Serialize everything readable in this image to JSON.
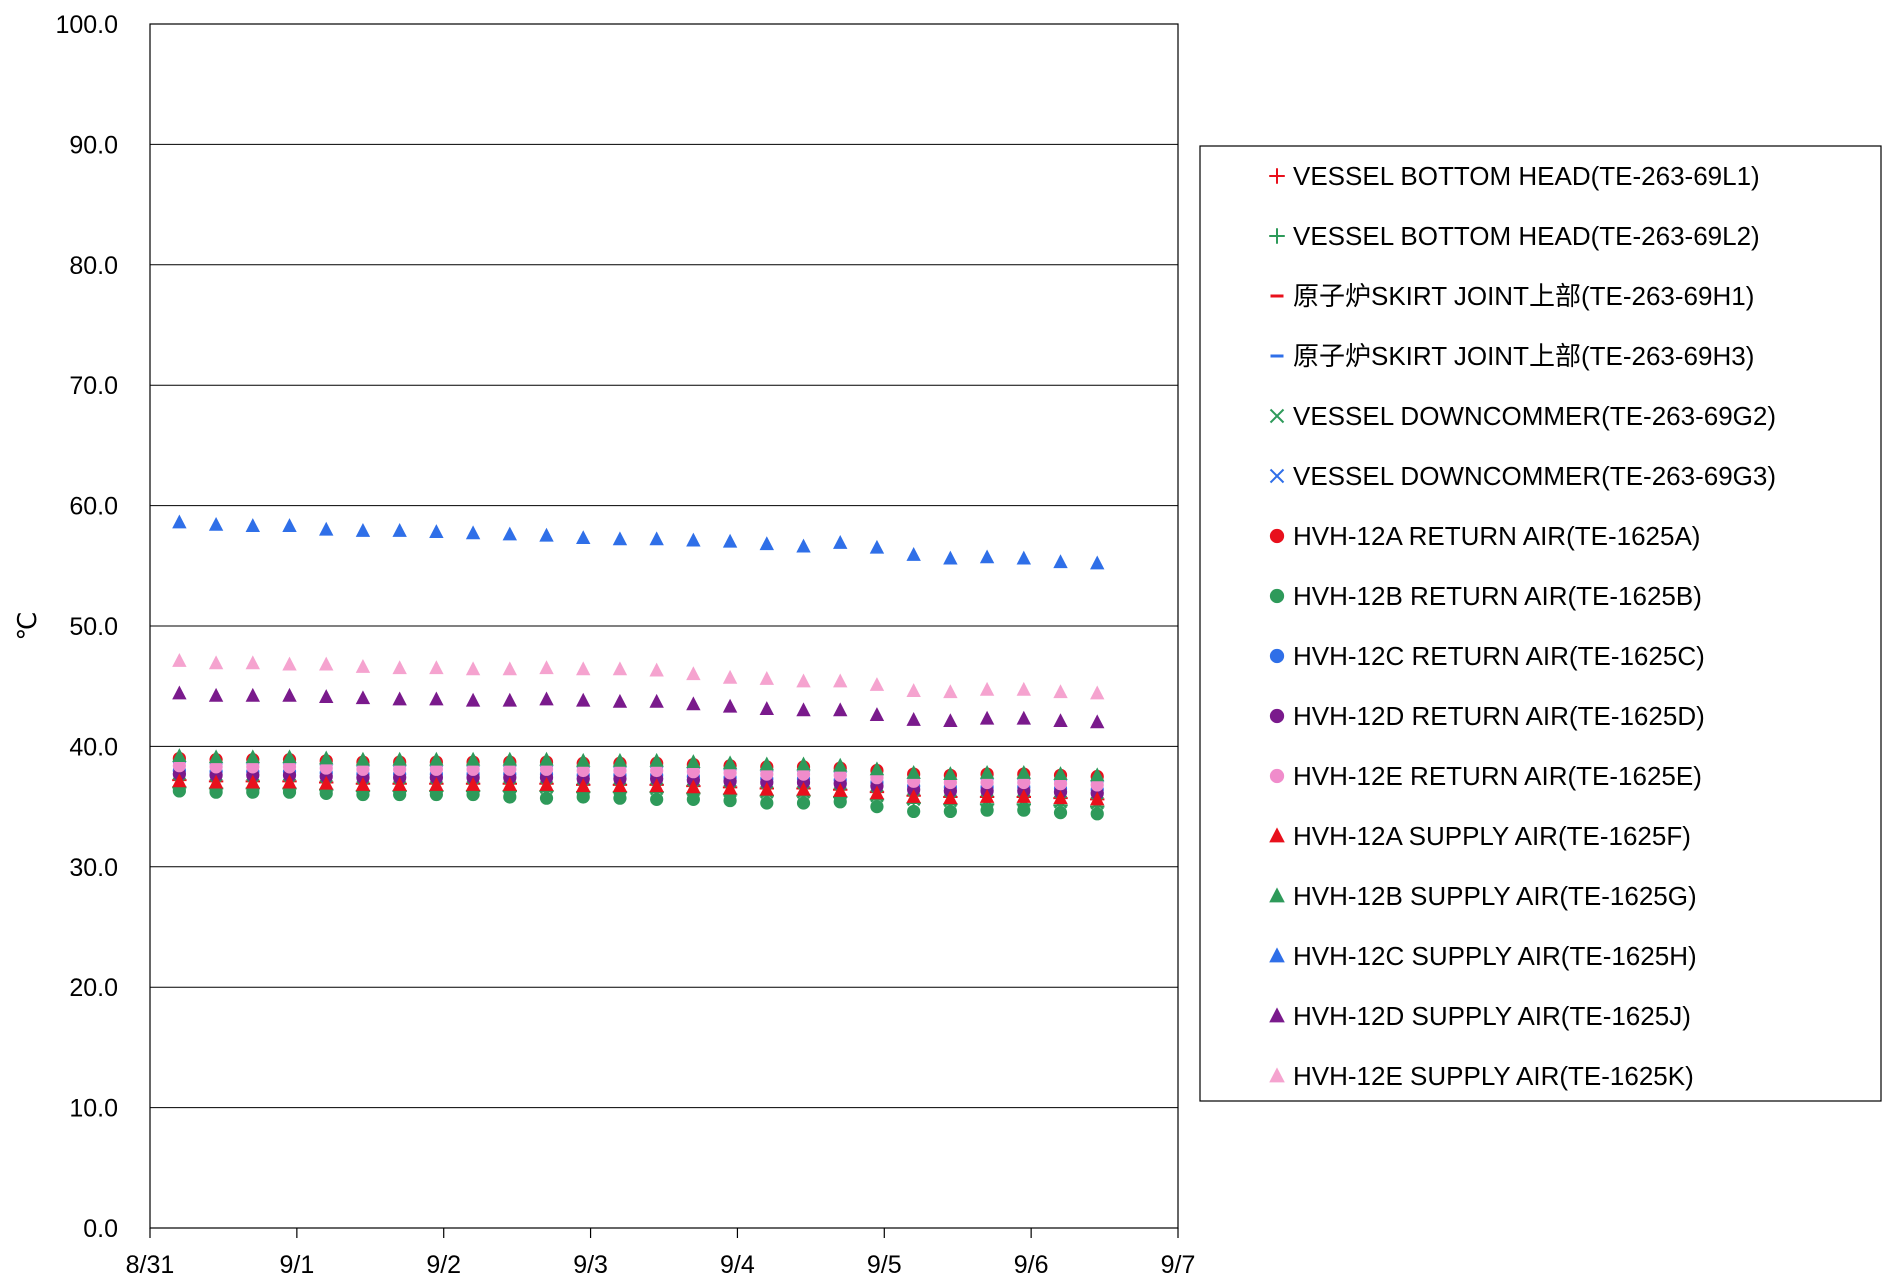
{
  "chart_data": {
    "type": "scatter",
    "title": "",
    "xlabel": "",
    "ylabel": "℃",
    "ylim": [
      0,
      100
    ],
    "y_ticks": [
      "0.0",
      "10.0",
      "20.0",
      "30.0",
      "40.0",
      "50.0",
      "60.0",
      "70.0",
      "80.0",
      "90.0",
      "100.0"
    ],
    "x_ticks": [
      "8/31",
      "9/1",
      "9/2",
      "9/3",
      "9/4",
      "9/5",
      "9/6",
      "9/7"
    ],
    "x_range_days": [
      0,
      7
    ],
    "grid": "horizontal",
    "legend_position": "right",
    "x": [
      0.2,
      0.45,
      0.7,
      0.95,
      1.2,
      1.45,
      1.7,
      1.95,
      2.2,
      2.45,
      2.7,
      2.95,
      3.2,
      3.45,
      3.7,
      3.95,
      4.2,
      4.45,
      4.7,
      4.95,
      5.2,
      5.45,
      5.7,
      5.95,
      6.2,
      6.45
    ],
    "series": [
      {
        "name": "VESSEL BOTTOM HEAD(TE-263-69L1)",
        "marker": "plus",
        "color": "#e8101c",
        "values": [
          37.2,
          37.1,
          37.1,
          37.1,
          37.0,
          36.9,
          36.9,
          36.9,
          36.9,
          36.9,
          36.9,
          36.8,
          36.8,
          36.8,
          36.7,
          36.6,
          36.5,
          36.5,
          36.4,
          36.2,
          35.9,
          35.8,
          35.8,
          35.8,
          35.7,
          35.6
        ]
      },
      {
        "name": "VESSEL BOTTOM HEAD(TE-263-69L2)",
        "marker": "plus",
        "color": "#2e9a5a",
        "values": [
          36.6,
          36.5,
          36.5,
          36.5,
          36.4,
          36.3,
          36.3,
          36.3,
          36.3,
          36.3,
          36.3,
          36.2,
          36.2,
          36.2,
          36.1,
          36.0,
          35.9,
          35.9,
          35.8,
          35.6,
          35.3,
          35.2,
          35.2,
          35.2,
          35.1,
          35.0
        ]
      },
      {
        "name": "原子炉SKIRT JOINT上部(TE-263-69H1)",
        "marker": "dash",
        "color": "#e8101c",
        "values": [
          37.6,
          37.5,
          37.5,
          37.5,
          37.4,
          37.3,
          37.3,
          37.3,
          37.3,
          37.3,
          37.3,
          37.2,
          37.2,
          37.2,
          37.1,
          37.0,
          36.9,
          36.9,
          36.8,
          36.6,
          36.3,
          36.2,
          36.2,
          36.2,
          36.1,
          36.0
        ]
      },
      {
        "name": "原子炉SKIRT JOINT上部(TE-263-69H3)",
        "marker": "dash",
        "color": "#2f6fe8",
        "values": [
          38.6,
          38.5,
          38.5,
          38.5,
          38.4,
          38.3,
          38.3,
          38.3,
          38.3,
          38.3,
          38.3,
          38.2,
          38.2,
          38.2,
          38.1,
          38.0,
          37.9,
          37.9,
          37.8,
          37.6,
          37.3,
          37.2,
          37.2,
          37.2,
          37.1,
          37.0
        ]
      },
      {
        "name": "VESSEL DOWNCOMMER(TE-263-69G2)",
        "marker": "x",
        "color": "#2e9a5a",
        "values": [
          36.9,
          36.8,
          36.8,
          36.8,
          36.7,
          36.6,
          36.6,
          36.6,
          36.6,
          36.6,
          36.6,
          36.5,
          36.5,
          36.5,
          36.4,
          36.3,
          36.2,
          36.2,
          36.1,
          35.9,
          35.6,
          35.5,
          35.5,
          35.5,
          35.4,
          35.3
        ]
      },
      {
        "name": "VESSEL DOWNCOMMER(TE-263-69G3)",
        "marker": "x",
        "color": "#2f6fe8",
        "values": [
          38.2,
          38.1,
          38.1,
          38.1,
          38.0,
          37.9,
          37.9,
          37.9,
          37.9,
          37.9,
          37.9,
          37.8,
          37.8,
          37.8,
          37.7,
          37.6,
          37.5,
          37.5,
          37.4,
          37.2,
          36.9,
          36.8,
          36.8,
          36.8,
          36.7,
          36.6
        ]
      },
      {
        "name": "HVH-12A RETURN AIR(TE-1625A)",
        "marker": "circle",
        "color": "#e8101c",
        "values": [
          39.0,
          38.9,
          38.9,
          38.9,
          38.8,
          38.7,
          38.7,
          38.7,
          38.7,
          38.7,
          38.7,
          38.6,
          38.6,
          38.6,
          38.5,
          38.4,
          38.3,
          38.3,
          38.2,
          38.0,
          37.7,
          37.6,
          37.7,
          37.7,
          37.6,
          37.5
        ]
      },
      {
        "name": "HVH-12B RETURN AIR(TE-1625B)",
        "marker": "circle",
        "color": "#2e9a5a",
        "values": [
          36.3,
          36.2,
          36.2,
          36.2,
          36.1,
          36.0,
          36.0,
          36.0,
          36.0,
          35.8,
          35.7,
          35.8,
          35.7,
          35.6,
          35.6,
          35.5,
          35.3,
          35.3,
          35.4,
          35.0,
          34.6,
          34.6,
          34.7,
          34.7,
          34.5,
          34.4
        ]
      },
      {
        "name": "HVH-12C RETURN AIR(TE-1625C)",
        "marker": "circle",
        "color": "#2f6fe8",
        "values": [
          38.0,
          37.9,
          37.9,
          37.9,
          37.8,
          37.7,
          37.7,
          37.7,
          37.7,
          37.7,
          37.7,
          37.6,
          37.6,
          37.6,
          37.5,
          37.4,
          37.3,
          37.3,
          37.2,
          37.0,
          36.7,
          36.6,
          36.6,
          36.6,
          36.5,
          36.4
        ]
      },
      {
        "name": "HVH-12D RETURN AIR(TE-1625D)",
        "marker": "circle",
        "color": "#7a1a8c",
        "values": [
          37.7,
          37.6,
          37.6,
          37.6,
          37.5,
          37.4,
          37.4,
          37.4,
          37.4,
          37.4,
          37.4,
          37.3,
          37.3,
          37.3,
          37.2,
          37.1,
          37.0,
          37.0,
          36.9,
          36.7,
          36.4,
          36.3,
          36.3,
          36.3,
          36.2,
          36.1
        ]
      },
      {
        "name": "HVH-12E RETURN AIR(TE-1625E)",
        "marker": "circle",
        "color": "#f08ccb",
        "values": [
          38.4,
          38.3,
          38.3,
          38.3,
          38.2,
          38.1,
          38.1,
          38.1,
          38.1,
          38.1,
          38.1,
          38.0,
          38.0,
          38.0,
          37.9,
          37.8,
          37.7,
          37.7,
          37.6,
          37.4,
          37.1,
          37.0,
          37.0,
          37.0,
          36.9,
          36.8
        ]
      },
      {
        "name": "HVH-12A SUPPLY AIR(TE-1625F)",
        "marker": "triangle",
        "color": "#e8101c",
        "values": [
          37.1,
          37.0,
          37.0,
          37.0,
          36.9,
          36.8,
          36.8,
          36.8,
          36.8,
          36.8,
          36.8,
          36.7,
          36.7,
          36.7,
          36.6,
          36.5,
          36.4,
          36.4,
          36.3,
          36.1,
          35.8,
          35.7,
          35.8,
          35.8,
          35.7,
          35.6
        ]
      },
      {
        "name": "HVH-12B SUPPLY AIR(TE-1625G)",
        "marker": "triangle",
        "color": "#2e9a5a",
        "values": [
          39.2,
          39.1,
          39.1,
          39.1,
          39.0,
          38.9,
          38.9,
          38.9,
          38.9,
          38.9,
          38.9,
          38.8,
          38.8,
          38.8,
          38.7,
          38.6,
          38.5,
          38.5,
          38.4,
          38.1,
          37.8,
          37.7,
          37.8,
          37.8,
          37.7,
          37.6
        ]
      },
      {
        "name": "HVH-12C SUPPLY AIR(TE-1625H)",
        "marker": "triangle",
        "color": "#2f6fe8",
        "values": [
          58.6,
          58.4,
          58.3,
          58.3,
          58.0,
          57.9,
          57.9,
          57.8,
          57.7,
          57.6,
          57.5,
          57.3,
          57.2,
          57.2,
          57.1,
          57.0,
          56.8,
          56.6,
          56.9,
          56.5,
          55.9,
          55.6,
          55.7,
          55.6,
          55.3,
          55.2
        ]
      },
      {
        "name": "HVH-12D SUPPLY AIR(TE-1625J)",
        "marker": "triangle",
        "color": "#7a1a8c",
        "values": [
          44.4,
          44.2,
          44.2,
          44.2,
          44.1,
          44.0,
          43.9,
          43.9,
          43.8,
          43.8,
          43.9,
          43.8,
          43.7,
          43.7,
          43.5,
          43.3,
          43.1,
          43.0,
          43.0,
          42.6,
          42.2,
          42.1,
          42.3,
          42.3,
          42.1,
          42.0
        ]
      },
      {
        "name": "HVH-12E SUPPLY AIR(TE-1625K)",
        "marker": "triangle",
        "color": "#f5a3cf",
        "values": [
          47.1,
          46.9,
          46.9,
          46.8,
          46.8,
          46.6,
          46.5,
          46.5,
          46.4,
          46.4,
          46.5,
          46.4,
          46.4,
          46.3,
          46.0,
          45.7,
          45.6,
          45.4,
          45.4,
          45.1,
          44.6,
          44.5,
          44.7,
          44.7,
          44.5,
          44.4
        ]
      }
    ]
  }
}
